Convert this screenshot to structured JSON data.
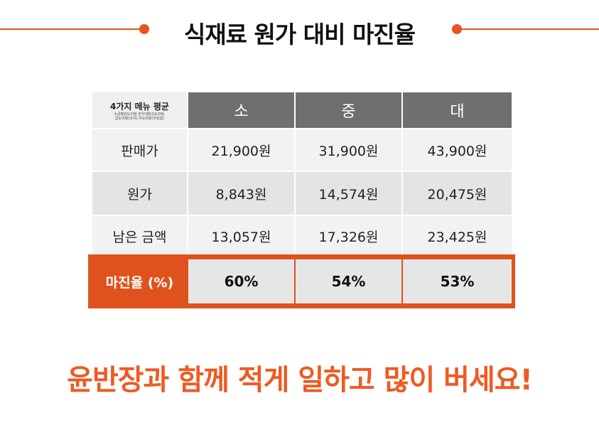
{
  "title": "식재료 원가 대비 마진율",
  "table": {
    "corner_main": "4가지 메뉴 평균",
    "corner_sub_1": "소금짱김도리탕,한우대창김도리탕,",
    "corner_sub_2": "곱도리탕(꼬치),우도리탕(우삼겹)",
    "headers": [
      "소",
      "중",
      "대"
    ],
    "rows": [
      {
        "label": "판매가",
        "values": [
          "21,900원",
          "31,900원",
          "43,900원"
        ]
      },
      {
        "label": "원가",
        "values": [
          "8,843원",
          "14,574원",
          "20,475원"
        ]
      },
      {
        "label": "남은 금액",
        "values": [
          "13,057원",
          "17,326원",
          "23,425원"
        ]
      }
    ],
    "margin": {
      "label": "마진율 (%)",
      "values": [
        "60%",
        "54%",
        "53%"
      ]
    }
  },
  "slogan": "윤반장과 함께 적게 일하고 많이 버세요!",
  "colors": {
    "accent": "#e8541f",
    "header_gray": "#6f6f6f"
  }
}
